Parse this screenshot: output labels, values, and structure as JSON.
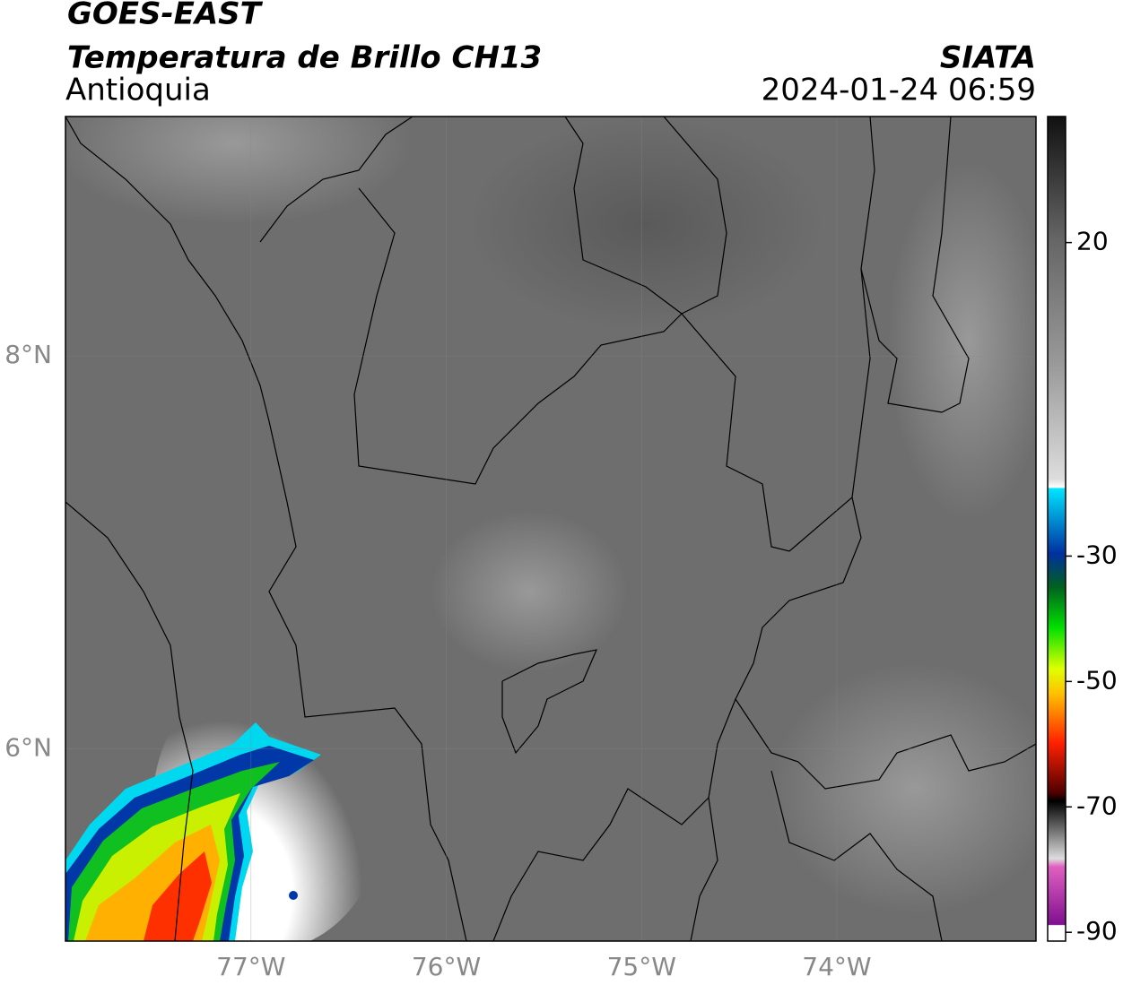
{
  "header": {
    "satellite": "GOES-EAST",
    "product": "Temperatura de Brillo CH13",
    "region": "Antioquia",
    "source": "SIATA",
    "datetime": "2024-01-24 06:59"
  },
  "map": {
    "xlim": [
      -77.95,
      -72.98
    ],
    "ylim": [
      5.02,
      9.22
    ],
    "xticks": [
      {
        "value": -77,
        "label": "77°W"
      },
      {
        "value": -76,
        "label": "76°W"
      },
      {
        "value": -75,
        "label": "75°W"
      },
      {
        "value": -74,
        "label": "74°W"
      }
    ],
    "yticks": [
      {
        "value": 8,
        "label": "8°N"
      },
      {
        "value": 6,
        "label": "6°N"
      }
    ],
    "grid": true
  },
  "colorbar": {
    "lim": [
      -91.4,
      40.1
    ],
    "ticks": [
      20,
      -30,
      -50,
      -70,
      -90
    ]
  }
}
